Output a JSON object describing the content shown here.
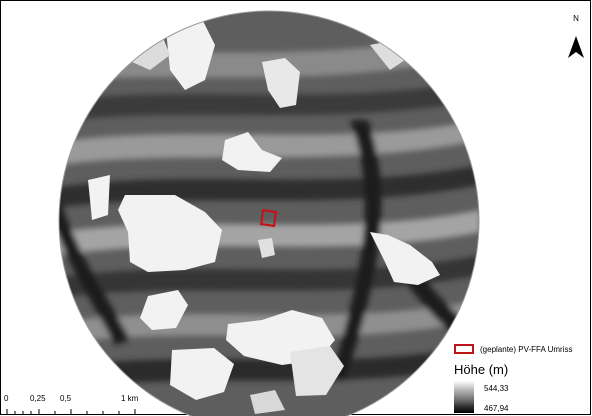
{
  "north_arrow": {
    "label": "N",
    "icon": "north-arrow-icon"
  },
  "legend": {
    "outline_label": "(geplante) PV-FFA Umriss",
    "outline_color": "#c0151b",
    "title": "Höhe (m)",
    "max_value": "544,33",
    "min_value": "467,94"
  },
  "scale_bar": {
    "labels": [
      "0",
      "0,25",
      "0,5",
      "1 km"
    ]
  }
}
